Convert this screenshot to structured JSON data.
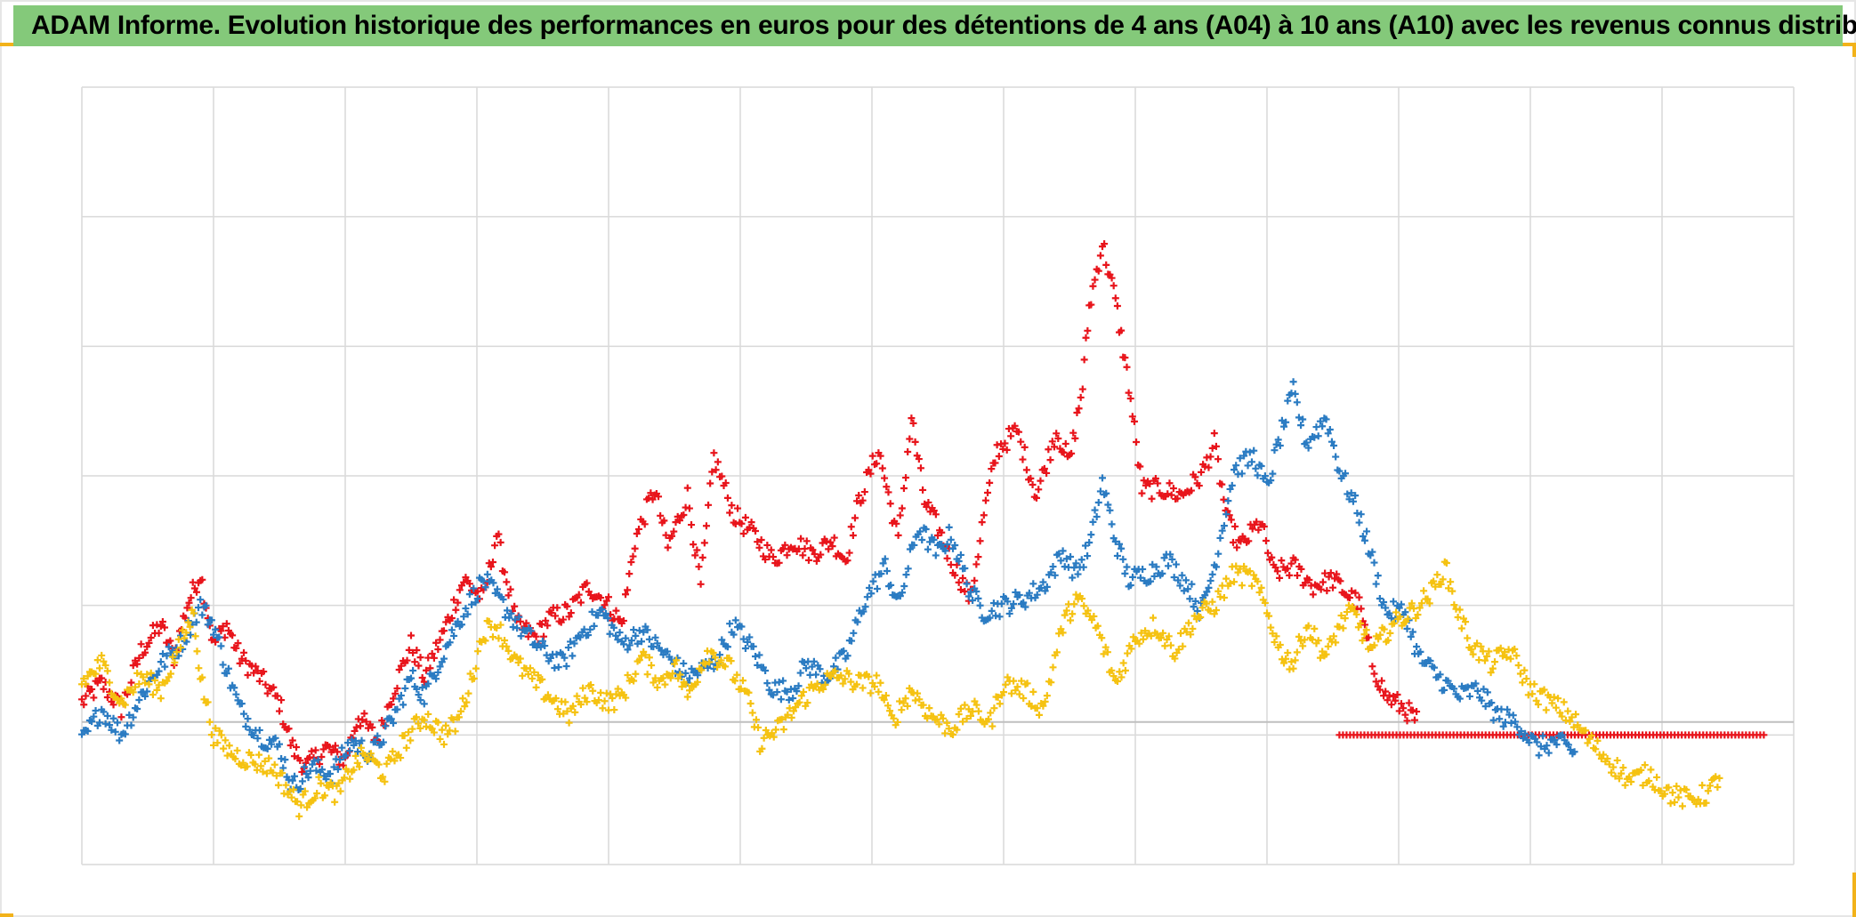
{
  "page": {
    "title": "ADAM Informe. Evolution historique des performances en euros pour des détentions de 4 ans (A04) à 10 ans (A10) avec les revenus connus distribués",
    "accent_color": "#84c97a",
    "corner_color": "#f2b21a"
  },
  "chart_data": {
    "type": "scatter",
    "title": "ADAM Informe. Evolution historique des performances en euros pour des détentions de 4 ans (A04) à 10 ans (A10) avec les revenus connus distribués",
    "xlabel": "",
    "ylabel": "",
    "marker": "plus",
    "grid": true,
    "legend": "none",
    "xlim": [
      0,
      13
    ],
    "ylim": [
      -1.1,
      4.9
    ],
    "x_gridlines": 13,
    "y_gridlines": 6,
    "zero_line": 0,
    "series": [
      {
        "color": "#e8141b",
        "points": [
          [
            0,
            0.15
          ],
          [
            0.15,
            0.3
          ],
          [
            0.3,
            0.1
          ],
          [
            0.45,
            0.55
          ],
          [
            0.6,
            0.75
          ],
          [
            0.7,
            0.5
          ],
          [
            0.8,
            0.9
          ],
          [
            0.9,
            1.15
          ],
          [
            1.0,
            0.6
          ],
          [
            1.1,
            0.75
          ],
          [
            1.2,
            0.5
          ],
          [
            1.35,
            0.35
          ],
          [
            1.5,
            0.15
          ],
          [
            1.6,
            -0.2
          ],
          [
            1.7,
            -0.35
          ],
          [
            1.85,
            -0.2
          ],
          [
            2.0,
            -0.3
          ],
          [
            2.1,
            0.05
          ],
          [
            2.25,
            -0.15
          ],
          [
            2.35,
            0.2
          ],
          [
            2.5,
            0.6
          ],
          [
            2.6,
            0.35
          ],
          [
            2.75,
            0.7
          ],
          [
            2.9,
            1.1
          ],
          [
            3.05,
            0.95
          ],
          [
            3.15,
            1.45
          ],
          [
            3.3,
            0.75
          ],
          [
            3.45,
            0.65
          ],
          [
            3.55,
            0.8
          ],
          [
            3.7,
            0.85
          ],
          [
            3.85,
            1.05
          ],
          [
            4.0,
            0.9
          ],
          [
            4.1,
            0.75
          ],
          [
            4.2,
            1.4
          ],
          [
            4.35,
            1.8
          ],
          [
            4.45,
            1.35
          ],
          [
            4.6,
            1.75
          ],
          [
            4.7,
            1.05
          ],
          [
            4.8,
            2.05
          ],
          [
            4.95,
            1.6
          ],
          [
            5.1,
            1.45
          ],
          [
            5.25,
            1.25
          ],
          [
            5.4,
            1.4
          ],
          [
            5.55,
            1.3
          ],
          [
            5.7,
            1.4
          ],
          [
            5.8,
            1.25
          ],
          [
            5.9,
            1.7
          ],
          [
            6.05,
            2.1
          ],
          [
            6.2,
            1.4
          ],
          [
            6.3,
            2.35
          ],
          [
            6.4,
            1.7
          ],
          [
            6.5,
            1.5
          ],
          [
            6.6,
            1.25
          ],
          [
            6.75,
            0.95
          ],
          [
            6.85,
            1.6
          ],
          [
            6.95,
            2.1
          ],
          [
            7.1,
            2.25
          ],
          [
            7.25,
            1.75
          ],
          [
            7.4,
            2.25
          ],
          [
            7.5,
            2.0
          ],
          [
            7.6,
            2.6
          ],
          [
            7.65,
            3.2
          ],
          [
            7.75,
            3.7
          ],
          [
            7.85,
            3.25
          ],
          [
            7.95,
            2.6
          ],
          [
            8.05,
            1.8
          ],
          [
            8.2,
            1.8
          ],
          [
            8.35,
            1.75
          ],
          [
            8.5,
            1.9
          ],
          [
            8.6,
            2.15
          ],
          [
            8.7,
            1.55
          ],
          [
            8.8,
            1.35
          ],
          [
            8.95,
            1.55
          ],
          [
            9.05,
            1.15
          ],
          [
            9.2,
            1.2
          ],
          [
            9.35,
            1.05
          ],
          [
            9.5,
            1.1
          ],
          [
            9.6,
            1.0
          ],
          [
            9.7,
            0.9
          ],
          [
            9.8,
            0.45
          ],
          [
            9.9,
            0.2
          ],
          [
            10.05,
            0.1
          ],
          [
            10.15,
            0.0
          ]
        ]
      },
      {
        "color": "#e8141b",
        "points": [
          [
            9.55,
            -0.1
          ],
          [
            12.8,
            -0.1
          ]
        ]
      },
      {
        "color": "#2a7bc2",
        "points": [
          [
            0,
            -0.15
          ],
          [
            0.15,
            0.1
          ],
          [
            0.3,
            -0.1
          ],
          [
            0.45,
            0.2
          ],
          [
            0.6,
            0.45
          ],
          [
            0.75,
            0.6
          ],
          [
            0.9,
            0.9
          ],
          [
            1.0,
            0.75
          ],
          [
            1.1,
            0.4
          ],
          [
            1.2,
            0.1
          ],
          [
            1.35,
            -0.1
          ],
          [
            1.5,
            -0.2
          ],
          [
            1.6,
            -0.5
          ],
          [
            1.75,
            -0.35
          ],
          [
            1.9,
            -0.4
          ],
          [
            2.05,
            -0.15
          ],
          [
            2.2,
            -0.25
          ],
          [
            2.35,
            0.0
          ],
          [
            2.5,
            0.35
          ],
          [
            2.6,
            0.2
          ],
          [
            2.75,
            0.55
          ],
          [
            2.9,
            0.85
          ],
          [
            3.05,
            1.1
          ],
          [
            3.2,
            0.9
          ],
          [
            3.35,
            0.7
          ],
          [
            3.5,
            0.55
          ],
          [
            3.65,
            0.45
          ],
          [
            3.8,
            0.7
          ],
          [
            3.95,
            0.85
          ],
          [
            4.1,
            0.6
          ],
          [
            4.25,
            0.7
          ],
          [
            4.4,
            0.55
          ],
          [
            4.6,
            0.35
          ],
          [
            4.8,
            0.45
          ],
          [
            4.95,
            0.75
          ],
          [
            5.1,
            0.55
          ],
          [
            5.25,
            0.25
          ],
          [
            5.4,
            0.25
          ],
          [
            5.5,
            0.45
          ],
          [
            5.65,
            0.35
          ],
          [
            5.8,
            0.5
          ],
          [
            5.95,
            0.95
          ],
          [
            6.1,
            1.2
          ],
          [
            6.2,
            0.9
          ],
          [
            6.35,
            1.5
          ],
          [
            6.5,
            1.3
          ],
          [
            6.6,
            1.45
          ],
          [
            6.75,
            1.0
          ],
          [
            6.85,
            0.85
          ],
          [
            7.0,
            0.9
          ],
          [
            7.15,
            0.95
          ],
          [
            7.3,
            1.05
          ],
          [
            7.45,
            1.3
          ],
          [
            7.55,
            1.15
          ],
          [
            7.65,
            1.35
          ],
          [
            7.75,
            1.85
          ],
          [
            7.85,
            1.4
          ],
          [
            7.95,
            1.1
          ],
          [
            8.1,
            1.15
          ],
          [
            8.25,
            1.25
          ],
          [
            8.4,
            1.05
          ],
          [
            8.5,
            0.85
          ],
          [
            8.6,
            1.2
          ],
          [
            8.75,
            1.95
          ],
          [
            8.9,
            2.05
          ],
          [
            9.0,
            1.8
          ],
          [
            9.1,
            2.2
          ],
          [
            9.2,
            2.55
          ],
          [
            9.3,
            2.15
          ],
          [
            9.45,
            2.35
          ],
          [
            9.55,
            1.95
          ],
          [
            9.7,
            1.6
          ],
          [
            9.8,
            1.25
          ],
          [
            9.9,
            0.85
          ],
          [
            10.05,
            0.85
          ],
          [
            10.15,
            0.5
          ],
          [
            10.3,
            0.35
          ],
          [
            10.45,
            0.2
          ],
          [
            10.6,
            0.25
          ],
          [
            10.75,
            0.05
          ],
          [
            10.9,
            0.0
          ],
          [
            11.05,
            -0.2
          ],
          [
            11.2,
            -0.15
          ],
          [
            11.35,
            -0.25
          ]
        ]
      },
      {
        "color": "#f5c211",
        "points": [
          [
            0,
            0.3
          ],
          [
            0.15,
            0.45
          ],
          [
            0.3,
            0.15
          ],
          [
            0.45,
            0.35
          ],
          [
            0.6,
            0.25
          ],
          [
            0.75,
            0.6
          ],
          [
            0.85,
            0.85
          ],
          [
            0.9,
            0.35
          ],
          [
            1.0,
            -0.1
          ],
          [
            1.15,
            -0.25
          ],
          [
            1.3,
            -0.3
          ],
          [
            1.45,
            -0.35
          ],
          [
            1.55,
            -0.5
          ],
          [
            1.65,
            -0.65
          ],
          [
            1.8,
            -0.5
          ],
          [
            1.95,
            -0.55
          ],
          [
            2.05,
            -0.35
          ],
          [
            2.15,
            -0.25
          ],
          [
            2.3,
            -0.4
          ],
          [
            2.45,
            -0.15
          ],
          [
            2.6,
            0.05
          ],
          [
            2.75,
            -0.1
          ],
          [
            2.85,
            0.0
          ],
          [
            2.95,
            0.3
          ],
          [
            3.05,
            0.7
          ],
          [
            3.15,
            0.75
          ],
          [
            3.3,
            0.45
          ],
          [
            3.45,
            0.3
          ],
          [
            3.6,
            0.15
          ],
          [
            3.7,
            0.05
          ],
          [
            3.85,
            0.25
          ],
          [
            4.0,
            0.15
          ],
          [
            4.1,
            0.2
          ],
          [
            4.25,
            0.5
          ],
          [
            4.4,
            0.3
          ],
          [
            4.5,
            0.45
          ],
          [
            4.6,
            0.2
          ],
          [
            4.75,
            0.55
          ],
          [
            4.9,
            0.45
          ],
          [
            5.05,
            0.2
          ],
          [
            5.15,
            -0.15
          ],
          [
            5.3,
            -0.05
          ],
          [
            5.45,
            0.15
          ],
          [
            5.6,
            0.3
          ],
          [
            5.75,
            0.35
          ],
          [
            5.9,
            0.3
          ],
          [
            6.05,
            0.3
          ],
          [
            6.15,
            0.0
          ],
          [
            6.3,
            0.25
          ],
          [
            6.45,
            0.05
          ],
          [
            6.6,
            -0.05
          ],
          [
            6.75,
            0.1
          ],
          [
            6.9,
            0.0
          ],
          [
            7.0,
            0.3
          ],
          [
            7.15,
            0.25
          ],
          [
            7.3,
            0.1
          ],
          [
            7.45,
            0.75
          ],
          [
            7.55,
            0.95
          ],
          [
            7.7,
            0.75
          ],
          [
            7.85,
            0.3
          ],
          [
            8.0,
            0.65
          ],
          [
            8.15,
            0.75
          ],
          [
            8.3,
            0.55
          ],
          [
            8.45,
            0.8
          ],
          [
            8.6,
            0.9
          ],
          [
            8.75,
            1.15
          ],
          [
            8.9,
            1.1
          ],
          [
            9.0,
            0.85
          ],
          [
            9.1,
            0.55
          ],
          [
            9.2,
            0.45
          ],
          [
            9.3,
            0.75
          ],
          [
            9.45,
            0.5
          ],
          [
            9.55,
            0.75
          ],
          [
            9.65,
            0.85
          ],
          [
            9.8,
            0.55
          ],
          [
            9.95,
            0.75
          ],
          [
            10.1,
            0.85
          ],
          [
            10.25,
            1.0
          ],
          [
            10.35,
            1.2
          ],
          [
            10.45,
            0.85
          ],
          [
            10.55,
            0.6
          ],
          [
            10.7,
            0.45
          ],
          [
            10.85,
            0.55
          ],
          [
            11.0,
            0.25
          ],
          [
            11.15,
            0.15
          ],
          [
            11.3,
            0.05
          ],
          [
            11.45,
            -0.15
          ],
          [
            11.6,
            -0.3
          ],
          [
            11.75,
            -0.45
          ],
          [
            11.9,
            -0.4
          ],
          [
            12.05,
            -0.55
          ],
          [
            12.2,
            -0.6
          ],
          [
            12.35,
            -0.55
          ],
          [
            12.45,
            -0.4
          ]
        ]
      }
    ]
  }
}
